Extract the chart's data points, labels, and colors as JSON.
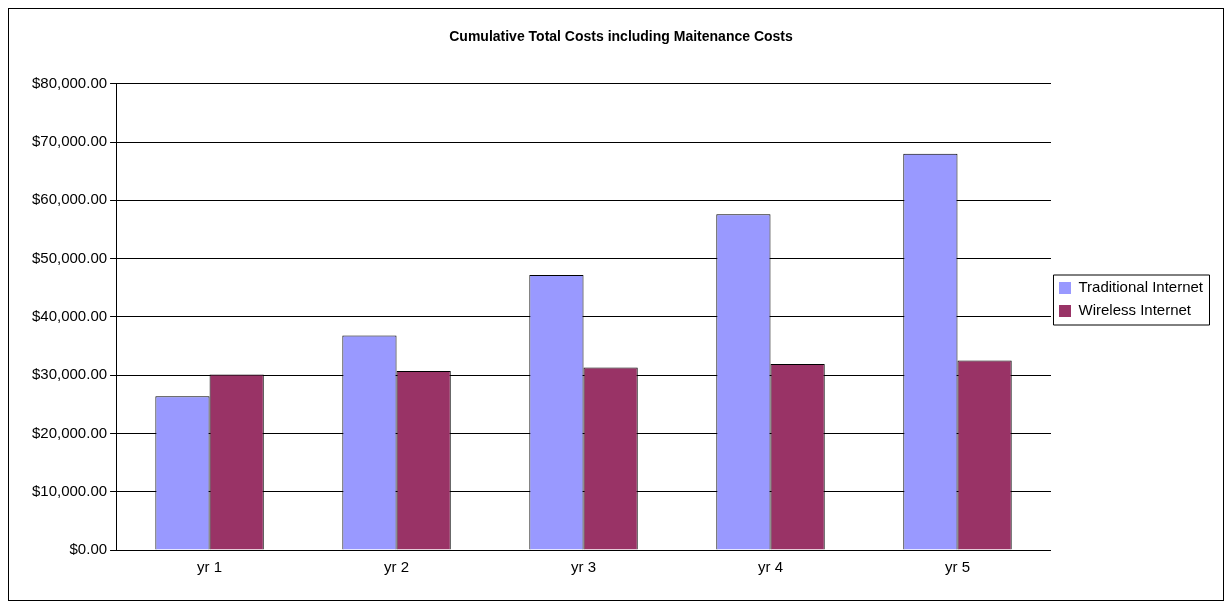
{
  "chart_data": {
    "type": "bar",
    "title": "Cumulative Total Costs including Maitenance Costs",
    "categories": [
      "yr 1",
      "yr 2",
      "yr 3",
      "yr 4",
      "yr 5"
    ],
    "series": [
      {
        "name": "Traditional Internet",
        "color": "#9999ff",
        "values": [
          26400,
          36800,
          47200,
          57600,
          68000
        ]
      },
      {
        "name": "Wireless Internet",
        "color": "#993366",
        "values": [
          30100,
          30700,
          31300,
          31900,
          32500
        ]
      }
    ],
    "ylim": [
      0,
      80000
    ],
    "yticks": [
      {
        "value": 0,
        "label": "$0.00"
      },
      {
        "value": 10000,
        "label": "$10,000.00"
      },
      {
        "value": 20000,
        "label": "$20,000.00"
      },
      {
        "value": 30000,
        "label": "$30,000.00"
      },
      {
        "value": 40000,
        "label": "$40,000.00"
      },
      {
        "value": 50000,
        "label": "$50,000.00"
      },
      {
        "value": 60000,
        "label": "$60,000.00"
      },
      {
        "value": 70000,
        "label": "$70,000.00"
      },
      {
        "value": 80000,
        "label": "$80,000.00"
      }
    ],
    "grid": "y",
    "legend": "right"
  }
}
